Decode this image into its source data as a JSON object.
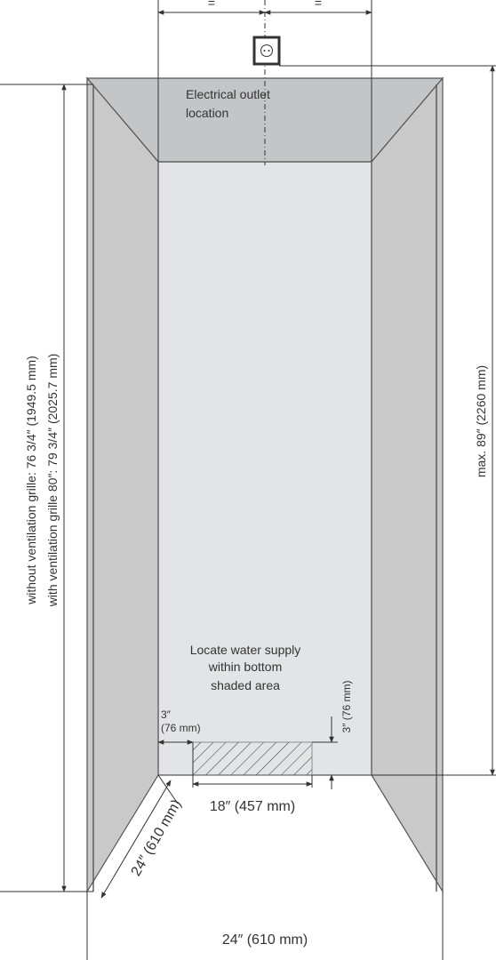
{
  "labels": {
    "top_equal_left": "=",
    "top_equal_right": "=",
    "electrical_outlet_line1": "Electrical outlet",
    "electrical_outlet_line2": "location",
    "water_supply_line1": "Locate water supply",
    "water_supply_line2": "within bottom",
    "water_supply_line3": "shaded area",
    "side_offset_line1": "3″",
    "side_offset_line2": "(76 mm)",
    "vertical_offset": "3″ (76 mm)",
    "hatch_width": "18″ (457 mm)",
    "depth": "24″ (610 mm)",
    "bottom_width": "24″ (610 mm)",
    "max_height": "max. 89″ (2260 mm)",
    "height_without_grille": "without ventilation grille: 76 3/4″ (1949.5 mm)",
    "height_with_grille": "with ventilation grille 80″: 79 3/4″ (2025.7 mm)"
  },
  "colors": {
    "wall_side": "#c9c9ca",
    "wall_back": "#e3e4e5",
    "ceiling": "#c4c5c6",
    "lines": "#333333"
  },
  "icons": {
    "outlet": "electrical-outlet-icon"
  }
}
